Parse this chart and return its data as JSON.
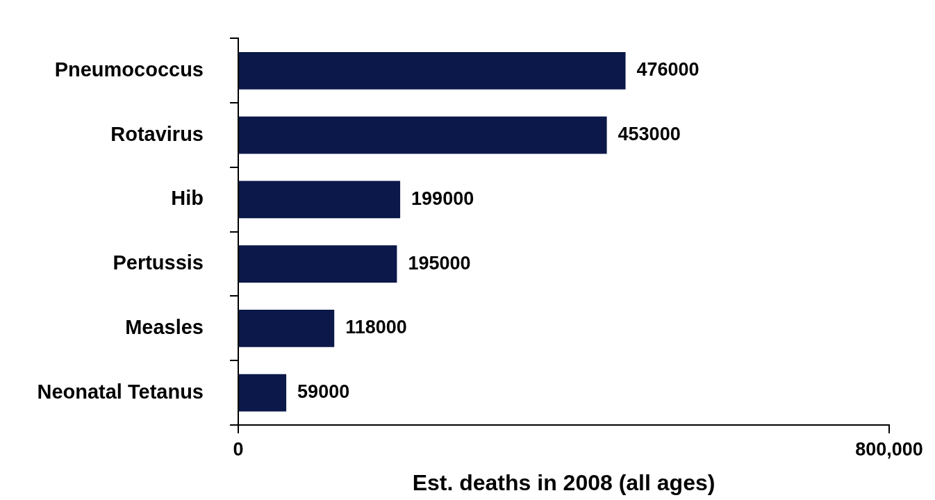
{
  "chart_data": {
    "type": "bar",
    "orientation": "horizontal",
    "xlabel": "Est. deaths in 2008 (all ages)",
    "categories": [
      "Pneumococcus",
      "Rotavirus",
      "Hib",
      "Pertussis",
      "Measles",
      "Neonatal Tetanus"
    ],
    "values": [
      476000,
      453000,
      199000,
      195000,
      118000,
      59000
    ],
    "color": "#0b1849",
    "xlim": [
      0,
      800000
    ],
    "xticks": [
      0,
      {
        "value": 800000,
        "label": "800,000"
      }
    ],
    "data_labels": true,
    "legend": false
  }
}
